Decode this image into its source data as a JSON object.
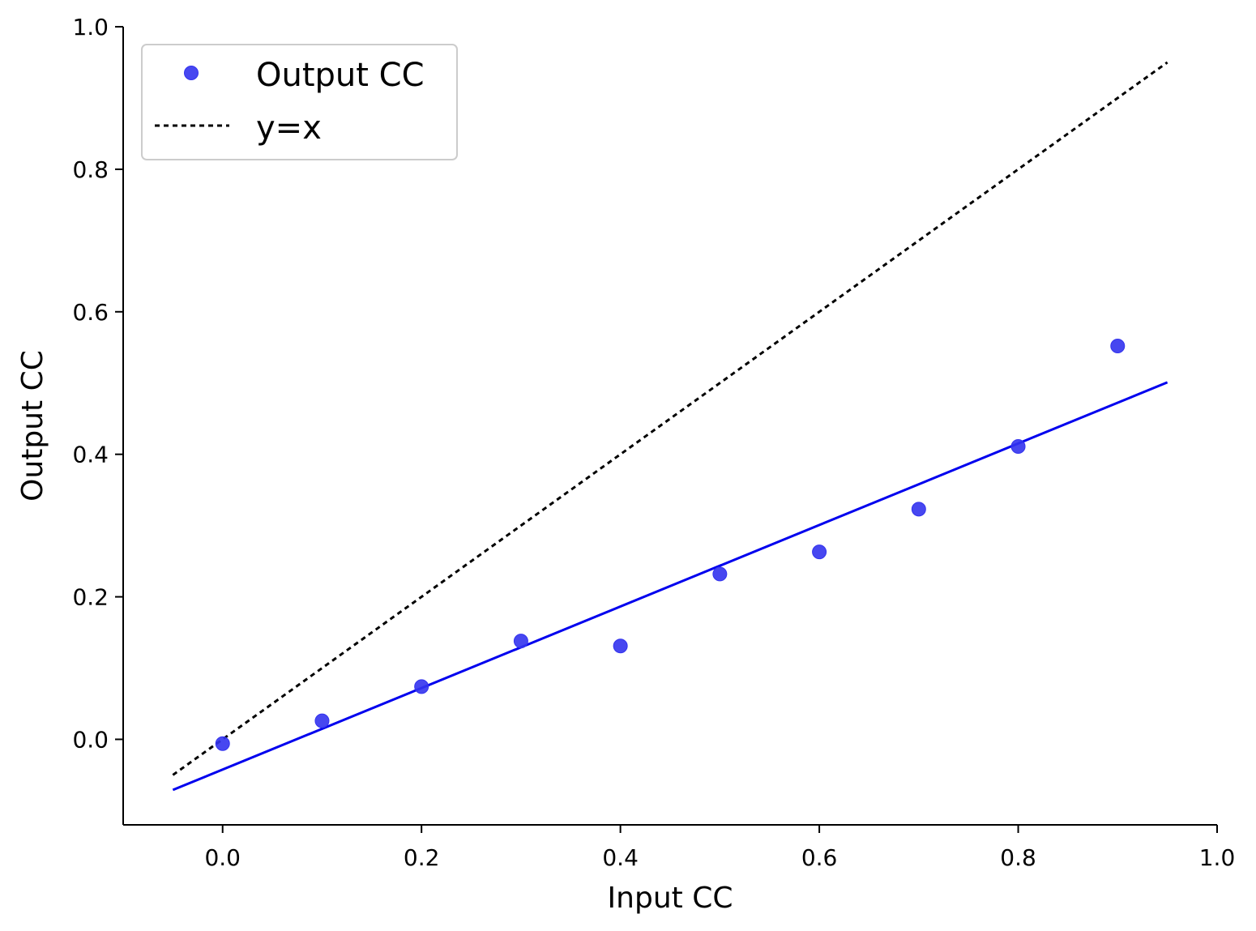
{
  "chart_data": {
    "type": "scatter",
    "xlabel": "Input CC",
    "ylabel": "Output CC",
    "xlim": [
      -0.1,
      1.0
    ],
    "ylim": [
      -0.12,
      1.0
    ],
    "x_ticks": [
      "0.0",
      "0.2",
      "0.4",
      "0.6",
      "0.8",
      "1.0"
    ],
    "y_ticks": [
      "0.0",
      "0.2",
      "0.4",
      "0.6",
      "0.8",
      "1.0"
    ],
    "grid": false,
    "legend_position": "top-left",
    "series": [
      {
        "name": "Output CC",
        "kind": "scatter",
        "color": "#3333ee",
        "x": [
          0.0,
          0.1,
          0.2,
          0.3,
          0.4,
          0.5,
          0.6,
          0.7,
          0.8,
          0.9
        ],
        "y": [
          -0.006,
          0.026,
          0.074,
          0.138,
          0.131,
          0.232,
          0.263,
          0.323,
          0.411,
          0.552
        ]
      },
      {
        "name": "y=x",
        "kind": "line",
        "style": "dotted",
        "color": "#000000",
        "x": [
          -0.05,
          0.95
        ],
        "y": [
          -0.05,
          0.95
        ]
      },
      {
        "kind": "line",
        "style": "solid",
        "color": "#0000ee",
        "x": [
          -0.05,
          0.95
        ],
        "y": [
          -0.071,
          0.501
        ]
      }
    ]
  }
}
